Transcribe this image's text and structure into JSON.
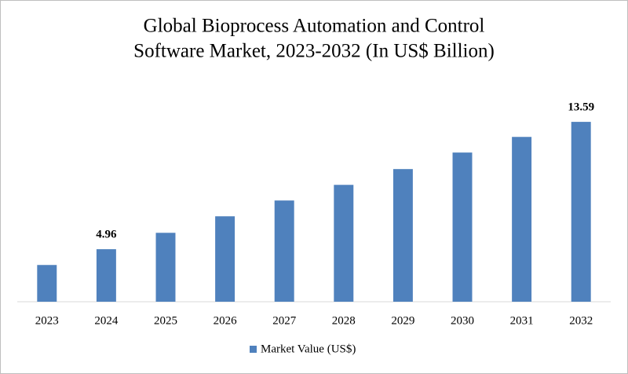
{
  "chart_data": {
    "type": "bar",
    "title": [
      "Global Bioprocess Automation and Control",
      "Software Market, 2023-2032 (In US$ Billion)"
    ],
    "categories": [
      "2023",
      "2024",
      "2025",
      "2026",
      "2027",
      "2028",
      "2029",
      "2030",
      "2031",
      "2032"
    ],
    "series": [
      {
        "name": "Market Value (US$)",
        "color": "#4f81bd",
        "values": [
          3.89,
          4.96,
          6.07,
          7.19,
          8.26,
          9.32,
          10.39,
          11.51,
          12.57,
          13.59
        ],
        "value_labels": [
          null,
          "4.96",
          null,
          null,
          null,
          null,
          null,
          null,
          null,
          "13.59"
        ]
      }
    ],
    "ylim": [
      1.4,
      14.5
    ],
    "legend": "bottom"
  }
}
